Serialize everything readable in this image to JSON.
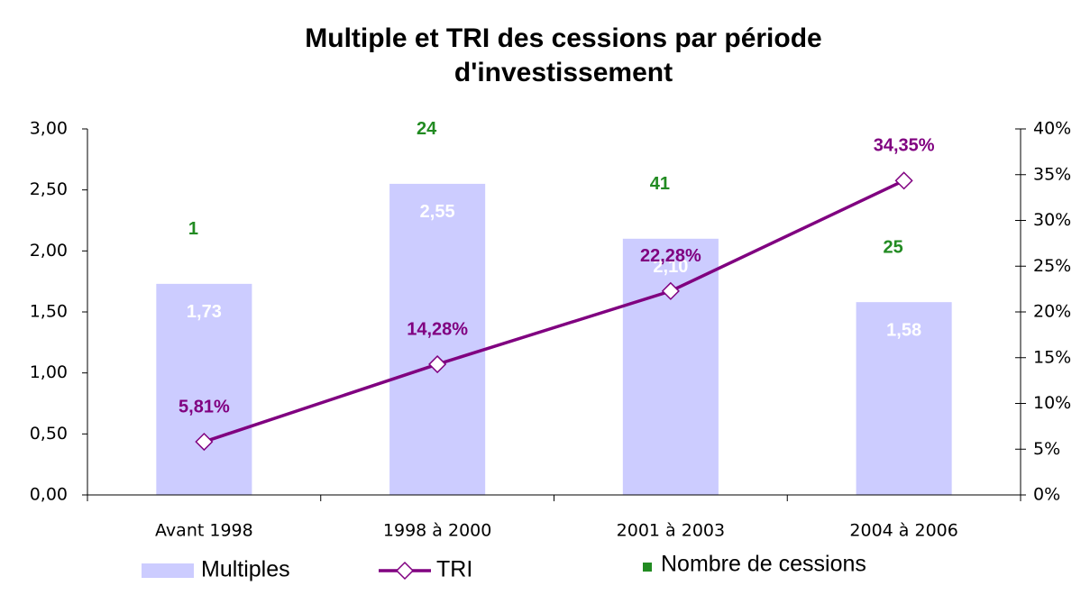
{
  "chart_data": {
    "type": "bar",
    "title": [
      "Multiple et TRI des cessions par période",
      "d'investissement"
    ],
    "categories": [
      "Avant 1998",
      "1998 à 2000",
      "2001 à 2003",
      "2004 à 2006"
    ],
    "series": [
      {
        "name": "Multiples",
        "type": "bar",
        "color": "#ccccff",
        "label_color": "#ffffff",
        "values": [
          1.73,
          2.55,
          2.1,
          1.58
        ],
        "value_labels": [
          "1,73",
          "2,55",
          "2,10",
          "1,58"
        ]
      },
      {
        "name": "TRI",
        "type": "line",
        "axis": "y2",
        "color": "#800080",
        "values": [
          5.81,
          14.28,
          22.28,
          34.35
        ],
        "value_labels": [
          "5,81%",
          "14,28%",
          "22,28%",
          "34,35%"
        ]
      },
      {
        "name": "Nombre de cessions",
        "type": "label",
        "color": "#228b22",
        "values": [
          1,
          24,
          41,
          25
        ]
      }
    ],
    "ylim": [
      0,
      3
    ],
    "yticks": [
      {
        "value": 0,
        "label": "0,00"
      },
      {
        "value": 0.5,
        "label": "0,50"
      },
      {
        "value": 1,
        "label": "1,00"
      },
      {
        "value": 1.5,
        "label": "1,50"
      },
      {
        "value": 2,
        "label": "2,00"
      },
      {
        "value": 2.5,
        "label": "2,50"
      },
      {
        "value": 3,
        "label": "3,00"
      }
    ],
    "y2lim": [
      0,
      40
    ],
    "y2ticks": [
      {
        "value": 0,
        "label": "0%"
      },
      {
        "value": 5,
        "label": "5%"
      },
      {
        "value": 10,
        "label": "10%"
      },
      {
        "value": 15,
        "label": "15%"
      },
      {
        "value": 20,
        "label": "20%"
      },
      {
        "value": 25,
        "label": "25%"
      },
      {
        "value": 30,
        "label": "30%"
      },
      {
        "value": 35,
        "label": "35%"
      },
      {
        "value": 40,
        "label": "40%"
      }
    ],
    "grid": false,
    "legend": "bottom"
  }
}
